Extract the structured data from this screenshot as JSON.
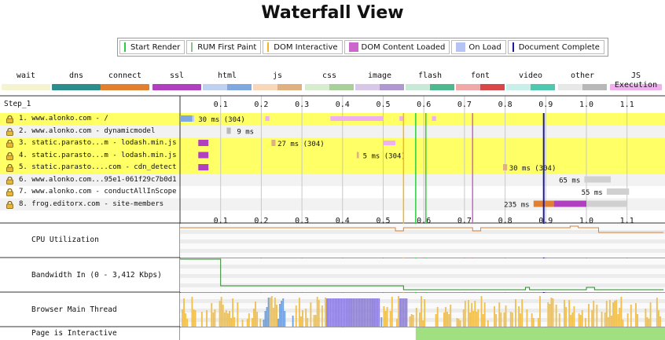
{
  "title": "Waterfall View",
  "legend": [
    {
      "label": "Start Render",
      "color": "#2ecc40"
    },
    {
      "label": "RUM First Paint",
      "color": "#8fbf8f"
    },
    {
      "label": "DOM Interactive",
      "color": "#f5b520"
    },
    {
      "label": "DOM Content Loaded",
      "color": "#cc66cc"
    },
    {
      "label": "On Load",
      "color": "#b6c4f5"
    },
    {
      "label": "Document Complete",
      "color": "#1a1aa8"
    }
  ],
  "types": [
    {
      "label": "wait",
      "colors": [
        "#f4f4d0"
      ]
    },
    {
      "label": "dns",
      "colors": [
        "#2d8c8c"
      ]
    },
    {
      "label": "connect",
      "colors": [
        "#e08030"
      ]
    },
    {
      "label": "ssl",
      "colors": [
        "#b040c0"
      ]
    },
    {
      "label": "html",
      "colors": [
        "#c0d0f0",
        "#80a8e0"
      ]
    },
    {
      "label": "js",
      "colors": [
        "#f8d8b8",
        "#e0b080"
      ]
    },
    {
      "label": "css",
      "colors": [
        "#d8ecd0",
        "#a8d098"
      ]
    },
    {
      "label": "image",
      "colors": [
        "#d8c8e8",
        "#b098d0"
      ]
    },
    {
      "label": "flash",
      "colors": [
        "#c8e8d8",
        "#50b890"
      ]
    },
    {
      "label": "font",
      "colors": [
        "#f0a8a8",
        "#d84848"
      ]
    },
    {
      "label": "video",
      "colors": [
        "#c8f0e8",
        "#50c8b0"
      ]
    },
    {
      "label": "other",
      "colors": [
        "#e8e8e8",
        "#b8b8b8"
      ]
    },
    {
      "label": "JS Execution",
      "colors": [
        "#f0b0f0"
      ]
    }
  ],
  "step_label": "Step_1",
  "axis_ticks": [
    "0.1",
    "0.2",
    "0.3",
    "0.4",
    "0.5",
    "0.6",
    "0.7",
    "0.8",
    "0.9",
    "1.0",
    "1.1"
  ],
  "requests": [
    {
      "name": "1. www.alonko.com - /",
      "secure": true,
      "timing": "30 ms (304)",
      "highlight": true
    },
    {
      "name": "2. www.alonko.com - dynamicmodel",
      "secure": true,
      "timing": "9 ms",
      "highlight": false
    },
    {
      "name": "3. static.parasto...m - lodash.min.js",
      "secure": true,
      "timing": "27 ms (304)",
      "highlight": true
    },
    {
      "name": "4. static.parasto...m - lodash.min.js",
      "secure": true,
      "timing": "5 ms (304)",
      "highlight": true
    },
    {
      "name": "5. static.parasto....com - cdn_detect",
      "secure": true,
      "timing": "30 ms (304)",
      "highlight": true
    },
    {
      "name": "6. www.alonko.com...95e1-061f29c7b0d1",
      "secure": true,
      "timing": "65 ms",
      "highlight": false
    },
    {
      "name": "7. www.alonko.com - conductAllInScope",
      "secure": true,
      "timing": "55 ms",
      "highlight": false
    },
    {
      "name": "8. frog.editorx.com - site-members",
      "secure": true,
      "timing": "235 ms",
      "highlight": false
    }
  ],
  "metrics": {
    "cpu": "CPU Utilization",
    "bandwidth": "Bandwidth In (0 - 3,412 Kbps)",
    "main_thread": "Browser Main Thread",
    "interactive": "Page is Interactive"
  },
  "colors": {
    "highlight": "#ffff66",
    "grid": "#c8c8c8",
    "cpu": "#e08030",
    "bandwidth": "#2a8a2a",
    "thread_script": "#f0c050",
    "thread_layout": "#9080e0",
    "thread_paint": "#70a0e0",
    "thread_parse": "#80c080",
    "interactive_green": "#a0e080",
    "interactive_red": "#ffffff"
  }
}
